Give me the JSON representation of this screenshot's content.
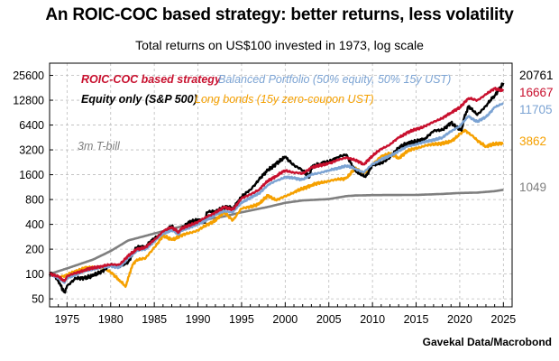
{
  "title": "An ROIC-COC based strategy: better returns, less volatility",
  "subtitle": "Total returns on US$100 invested in 1973, log scale",
  "source": "Gavekal Data/Macrobond",
  "colors": {
    "roic": "#c8102e",
    "balanced": "#7ba3d3",
    "equity": "#000000",
    "bonds": "#f5a000",
    "tbill": "#7f7f7f"
  },
  "chart_data": {
    "type": "line",
    "title": "An ROIC-COC based strategy: better returns, less volatility",
    "subtitle": "Total returns on US$100 invested in 1973, log scale",
    "y_scale": "log",
    "ylim": [
      40,
      36000
    ],
    "xlim": [
      1973,
      2026
    ],
    "y_ticks": [
      50,
      100,
      200,
      400,
      800,
      1600,
      3200,
      6400,
      12800,
      25600
    ],
    "y_tick_labels": [
      "50",
      "100",
      "200",
      "400",
      "800",
      "1600",
      "3200",
      "6400",
      "12800",
      "25600"
    ],
    "x_ticks": [
      1975,
      1980,
      1985,
      1990,
      1995,
      2000,
      2005,
      2010,
      2015,
      2020,
      2025
    ],
    "x_tick_labels": [
      "1975",
      "1980",
      "1985",
      "1990",
      "1995",
      "2000",
      "2005",
      "2010",
      "2015",
      "2020",
      "2025"
    ],
    "grid": true,
    "legend": "inside top-left",
    "series": [
      {
        "name": "3m T-bill",
        "color_key": "tbill",
        "end_label": "1049",
        "x": [
          1973,
          1975,
          1978,
          1980,
          1982,
          1985,
          1988,
          1990,
          1993,
          1995,
          1998,
          2000,
          2002,
          2005,
          2007,
          2008,
          2010,
          2015,
          2018,
          2020,
          2022,
          2024,
          2025
        ],
        "y": [
          100,
          117,
          150,
          190,
          255,
          310,
          375,
          440,
          500,
          560,
          650,
          730,
          780,
          810,
          880,
          895,
          905,
          910,
          935,
          960,
          970,
          1010,
          1049
        ]
      },
      {
        "name": "Long bonds (15y zero-coupon UST)",
        "color_key": "bonds",
        "end_label": "3862",
        "x": [
          1973,
          1974,
          1975,
          1977,
          1979,
          1980,
          1981,
          1981.7,
          1982.5,
          1983,
          1984,
          1985,
          1986,
          1987,
          1988,
          1990,
          1992,
          1993,
          1994,
          1995,
          1997,
          1998,
          1999,
          2000,
          2001,
          2003,
          2005,
          2007,
          2008,
          2009,
          2010,
          2011,
          2012,
          2013,
          2014,
          2016,
          2019,
          2020,
          2020.6,
          2022,
          2023,
          2024,
          2025
        ],
        "y": [
          100,
          92,
          97,
          118,
          120,
          105,
          85,
          70,
          130,
          150,
          155,
          210,
          290,
          260,
          290,
          340,
          450,
          560,
          450,
          620,
          700,
          900,
          780,
          880,
          980,
          1200,
          1350,
          1450,
          1900,
          1650,
          2100,
          2700,
          2900,
          2550,
          3100,
          3600,
          4000,
          5000,
          5600,
          4200,
          3500,
          3800,
          3862
        ]
      },
      {
        "name": "Equity only (S&P 500)",
        "color_key": "equity",
        "end_label": "20761",
        "x": [
          1973,
          1973.5,
          1974,
          1974.7,
          1975,
          1976,
          1977,
          1978,
          1979,
          1980,
          1981,
          1982,
          1982.6,
          1983,
          1984,
          1985,
          1986,
          1987,
          1987.8,
          1988,
          1989,
          1990,
          1990.8,
          1991,
          1992,
          1993,
          1994,
          1995,
          1996,
          1997,
          1998,
          1999,
          2000,
          2001,
          2002,
          2002.8,
          2003,
          2004,
          2005,
          2006,
          2007,
          2008,
          2009.2,
          2010,
          2011,
          2012,
          2013,
          2014,
          2015,
          2016,
          2017,
          2018,
          2019,
          2020.2,
          2020.5,
          2021,
          2022,
          2023,
          2024,
          2025
        ],
        "y": [
          100,
          98,
          82,
          60,
          72,
          88,
          90,
          95,
          108,
          130,
          125,
          140,
          180,
          210,
          215,
          270,
          320,
          380,
          300,
          340,
          420,
          460,
          420,
          560,
          580,
          640,
          630,
          860,
          1050,
          1400,
          1800,
          2200,
          2600,
          2100,
          1800,
          1500,
          2000,
          2150,
          2300,
          2600,
          2800,
          1800,
          1500,
          2100,
          2200,
          2600,
          3400,
          3900,
          4000,
          4400,
          5400,
          5600,
          6800,
          5500,
          7800,
          10800,
          8500,
          11000,
          14500,
          20761
        ]
      },
      {
        "name": "Balanced Portfolio (50% equity, 50% 15y UST)",
        "color_key": "balanced",
        "end_label": "11705",
        "x": [
          1973,
          1974,
          1974.7,
          1975,
          1977,
          1979,
          1980,
          1981,
          1982,
          1983,
          1984,
          1985,
          1986,
          1987,
          1987.8,
          1988,
          1990,
          1992,
          1993,
          1994,
          1995,
          1997,
          1998,
          1999,
          2000,
          2001,
          2002,
          2003,
          2005,
          2007,
          2008,
          2009,
          2010,
          2011,
          2012,
          2013,
          2014,
          2016,
          2018,
          2019,
          2020,
          2021,
          2022,
          2023,
          2024,
          2025
        ],
        "y": [
          100,
          90,
          78,
          90,
          108,
          120,
          125,
          120,
          155,
          190,
          200,
          250,
          310,
          340,
          300,
          330,
          400,
          520,
          580,
          560,
          740,
          950,
          1200,
          1350,
          1500,
          1450,
          1400,
          1600,
          1800,
          2050,
          1900,
          1700,
          2150,
          2450,
          2700,
          3100,
          3500,
          4000,
          4500,
          5400,
          6200,
          8200,
          7000,
          8000,
          10500,
          11705
        ]
      },
      {
        "name": "ROIC-COC based strategy",
        "color_key": "roic",
        "end_label": "16667",
        "x": [
          1973,
          1974,
          1974.7,
          1975,
          1977,
          1979,
          1980,
          1981,
          1982,
          1983,
          1984,
          1985,
          1986,
          1987,
          1987.8,
          1988,
          1990,
          1992,
          1993,
          1994,
          1995,
          1997,
          1998,
          1999,
          2000,
          2001,
          2002,
          2003,
          2005,
          2007,
          2008,
          2009,
          2010,
          2011,
          2012,
          2013,
          2014,
          2016,
          2018,
          2019,
          2020,
          2021,
          2022,
          2023,
          2024,
          2025
        ],
        "y": [
          100,
          93,
          82,
          94,
          112,
          125,
          130,
          130,
          165,
          200,
          210,
          260,
          330,
          370,
          320,
          350,
          430,
          560,
          640,
          610,
          820,
          1050,
          1350,
          1550,
          1800,
          1700,
          1650,
          1950,
          2200,
          2600,
          2400,
          2150,
          2700,
          3300,
          3700,
          4500,
          5200,
          6200,
          7800,
          9000,
          10500,
          13500,
          12800,
          15000,
          17800,
          16667
        ]
      }
    ],
    "legend_labels": {
      "roic": "ROIC-COC based strategy",
      "balanced": "Balanced Portfolio (50% equity, 50% 15y UST)",
      "equity": "Equity only (S&P 500)",
      "bonds": "Long bonds (15y zero-coupon UST)",
      "tbill": "3m T-bill"
    },
    "end_labels": [
      {
        "text": "20761",
        "color_key": "equity"
      },
      {
        "text": "16667",
        "color_key": "roic"
      },
      {
        "text": "11705",
        "color_key": "balanced"
      },
      {
        "text": "3862",
        "color_key": "bonds"
      },
      {
        "text": "1049",
        "color_key": "tbill"
      }
    ]
  }
}
